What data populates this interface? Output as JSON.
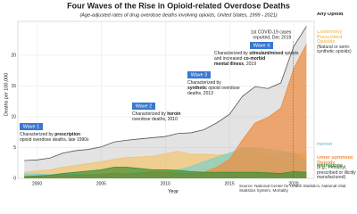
{
  "chart_data": {
    "type": "area",
    "title": "Four Waves of the Rise in Opioid-related Overdose Deaths",
    "subtitle": "(Age-adjusted rates of drug overdose deaths involving opioids, United States, 1999 - 2021)",
    "x_label": "Year",
    "y_label": "Deaths per 100,000",
    "x": [
      1999,
      2000,
      2001,
      2002,
      2003,
      2004,
      2005,
      2006,
      2007,
      2008,
      2009,
      2010,
      2011,
      2012,
      2013,
      2014,
      2015,
      2016,
      2017,
      2018,
      2019,
      2020,
      2021
    ],
    "xlim": [
      1998.5,
      2021.6
    ],
    "xticks": [
      2000,
      2005,
      2010,
      2015,
      2020
    ],
    "ylim": [
      0,
      25.5
    ],
    "yticks": [
      0,
      5,
      10,
      15,
      20
    ],
    "grid": true,
    "series": [
      {
        "name": "Any Opioid",
        "color": "#9a9a9a",
        "values": [
          2.9,
          3.0,
          3.3,
          4.1,
          4.5,
          4.7,
          5.1,
          5.9,
          6.2,
          6.4,
          6.6,
          6.8,
          7.3,
          7.4,
          7.9,
          9.0,
          10.4,
          13.3,
          14.9,
          14.6,
          15.5,
          21.4,
          24.7
        ]
      },
      {
        "name": "Commonly Prescribed Opioids",
        "note": "(Natural or semi-synthetic opioids)",
        "color": "#f2c46d",
        "values": [
          1.0,
          1.2,
          1.4,
          1.8,
          2.1,
          2.4,
          2.7,
          3.1,
          3.4,
          3.5,
          3.6,
          4.0,
          4.4,
          3.9,
          3.9,
          3.8,
          3.9,
          4.4,
          4.4,
          3.8,
          3.6,
          4.1,
          4.0
        ]
      },
      {
        "name": "Heroin",
        "color": "#7fd0c8",
        "values": [
          0.7,
          0.7,
          0.6,
          0.7,
          0.7,
          0.6,
          0.7,
          0.7,
          0.8,
          1.0,
          1.1,
          1.0,
          1.4,
          1.9,
          2.7,
          3.4,
          4.1,
          4.9,
          4.9,
          4.7,
          4.4,
          4.1,
          2.8
        ]
      },
      {
        "name": "Other Synthetic Opioids",
        "note": "(e.g., Fentanyl, prescribed or illicitly manufactured)",
        "color": "#f08a3c",
        "values": [
          0.3,
          0.3,
          0.3,
          0.4,
          0.5,
          0.6,
          0.6,
          0.9,
          0.7,
          0.8,
          1.0,
          1.0,
          0.8,
          0.8,
          1.0,
          1.8,
          3.1,
          6.2,
          9.0,
          9.9,
          11.4,
          17.8,
          21.8
        ]
      },
      {
        "name": "Methadone",
        "color": "#3f8f2f",
        "values": [
          0.3,
          0.4,
          0.5,
          0.8,
          1.0,
          1.2,
          1.4,
          1.8,
          1.8,
          1.6,
          1.4,
          1.4,
          1.3,
          1.1,
          1.0,
          1.0,
          1.0,
          1.0,
          1.0,
          0.9,
          0.8,
          1.1,
          1.0
        ]
      }
    ],
    "annotations": [
      {
        "label": "Wave 1",
        "lines": [
          [
            "Characterized by ",
            "prescription"
          ],
          [
            "opioid overdose deaths, late 1990s"
          ]
        ]
      },
      {
        "label": "Wave 2",
        "lines": [
          [
            "Characterized by ",
            "heroin"
          ],
          [
            "overdose deaths, 2010"
          ]
        ]
      },
      {
        "label": "Wave 3",
        "lines": [
          [
            "Characterized by"
          ],
          [
            "",
            "synthetic",
            " opioid overdose"
          ],
          [
            "deaths, 2013"
          ]
        ]
      },
      {
        "label": "Wave 4",
        "lines": [
          [
            "Characterized by ",
            "stimulant/mixed",
            " opioids"
          ],
          [
            "and increased ",
            "co-morbid"
          ],
          [
            "",
            "mental illness",
            ", 2019"
          ]
        ]
      }
    ],
    "event_note": [
      "1st COVID-19 cases",
      "reported, Dec 2019"
    ],
    "source": "Source: National Center for Health Statistics, National Vital Statistics System, Mortality"
  }
}
